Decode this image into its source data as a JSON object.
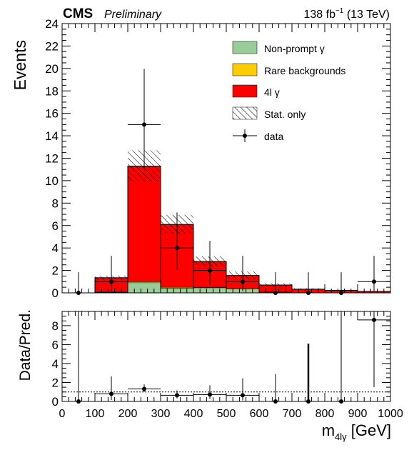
{
  "header": {
    "experiment": "CMS",
    "status": "Preliminary",
    "lumi_value": "138 fb",
    "lumi_exp": "−1",
    "lumi_energy": " (13 TeV)"
  },
  "chart_data": [
    {
      "type": "bar",
      "stacked": true,
      "panel": "main",
      "ylabel": "Events",
      "ylim": [
        0,
        24
      ],
      "y_ticks": [
        "0",
        "2",
        "4",
        "6",
        "8",
        "10",
        "12",
        "14",
        "16",
        "18",
        "20",
        "22",
        "24"
      ],
      "x_bin_edges": [
        0,
        100,
        200,
        300,
        400,
        500,
        600,
        700,
        800,
        900,
        1000
      ],
      "series": [
        {
          "name": "Non-prompt γ",
          "color": "#99cc99",
          "values": [
            0,
            0.05,
            0.9,
            0.4,
            0.45,
            0.35,
            0.05,
            0.0,
            0.0,
            0.0
          ]
        },
        {
          "name": "Rare backgrounds",
          "color": "#ffcc00",
          "values": [
            0,
            0.05,
            0.1,
            0.1,
            0.05,
            0.05,
            0.02,
            0.0,
            0.0,
            0.0
          ]
        },
        {
          "name": "4l γ",
          "color": "#ff0000",
          "values": [
            0,
            1.25,
            10.3,
            5.6,
            2.3,
            1.15,
            0.63,
            0.33,
            0.22,
            0.13
          ]
        }
      ],
      "stat_uncertainty": {
        "name": "Stat. only",
        "values": [
          0,
          0.2,
          1.4,
          0.85,
          0.45,
          0.35,
          0.15,
          0.08,
          0.05,
          0.04
        ]
      },
      "data": {
        "name": "data",
        "values": [
          0,
          1,
          15,
          4,
          2,
          1,
          0,
          0,
          0,
          1
        ],
        "err_low": [
          0,
          0.83,
          3.87,
          1.94,
          1.29,
          0.83,
          0,
          0,
          0,
          0.83
        ],
        "err_high": [
          1.84,
          2.3,
          4.96,
          3.16,
          2.64,
          2.3,
          1.84,
          1.84,
          1.84,
          2.3
        ]
      },
      "legend_position": "top-right"
    },
    {
      "type": "scatter",
      "panel": "ratio",
      "ylabel": "Data/Pred.",
      "xlabel": "m",
      "xlabel_sub": "4lγ",
      "xlabel_unit": " [GeV]",
      "ylim": [
        0,
        9.5
      ],
      "y_ticks": [
        "0",
        "2",
        "4",
        "6",
        "8"
      ],
      "xlim": [
        0,
        1000
      ],
      "x_ticks": [
        "0",
        "100",
        "200",
        "300",
        "400",
        "500",
        "600",
        "700",
        "800",
        "900",
        "1000"
      ],
      "reference_line": 1,
      "x": [
        50,
        150,
        250,
        350,
        450,
        550,
        650,
        750,
        850,
        950
      ],
      "values": [
        0,
        0.8,
        1.32,
        0.65,
        0.73,
        0.65,
        0,
        0,
        0,
        8.6
      ],
      "err_low": [
        0,
        0.65,
        0.34,
        0.32,
        0.47,
        0.54,
        0,
        0,
        0,
        7.1
      ],
      "err_high": [
        9.5,
        1.85,
        0.48,
        0.52,
        0.97,
        1.79,
        2.9,
        6.1,
        9.5,
        9.5
      ],
      "thick_error_bins": [
        7
      ]
    }
  ]
}
